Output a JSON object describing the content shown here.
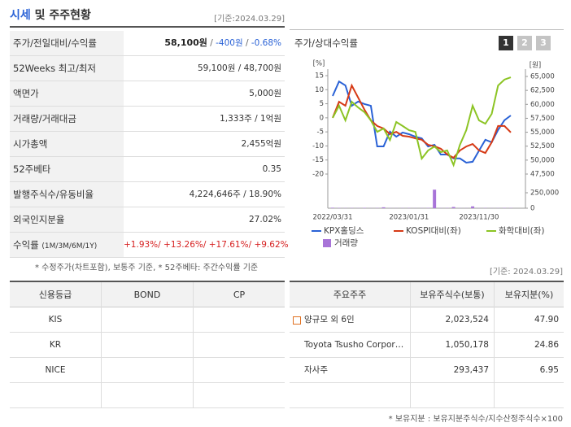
{
  "price_section": {
    "title_main": "시세",
    "title_rest": "및 주주현황",
    "date": "[기준:2024.03.29]",
    "rows": [
      {
        "label": "주가/전일대비/수익률",
        "value": [
          "58,100원",
          " / ",
          "-400원",
          " / ",
          "-0.68%"
        ]
      },
      {
        "label": "52Weeks 최고/최저",
        "value": "59,100원 / 48,700원"
      },
      {
        "label": "액면가",
        "value": "5,000원"
      },
      {
        "label": "거래량/거래대금",
        "value": "1,333주 / 1억원"
      },
      {
        "label": "시가총액",
        "value": "2,455억원"
      },
      {
        "label": "52주베타",
        "value": "0.35"
      },
      {
        "label": "발행주식수/유동비율",
        "value": "4,224,646주 / 18.90%"
      },
      {
        "label": "외국인지분율",
        "value": "27.02%"
      },
      {
        "label": "수익률",
        "sublabel": "(1M/3M/6M/1Y)",
        "value": "+1.93%/ +13.26%/ +17.61%/ +9.62%"
      }
    ],
    "footnote": "* 수정주가(차트포함), 보통주 기준, * 52주베타: 주간수익률 기준"
  },
  "chart_tabs": [
    "1",
    "2",
    "3"
  ],
  "chart_data": {
    "type": "line",
    "title": "주가/상대수익률",
    "y_unit": "[%]",
    "y2_unit": "[원]",
    "categories": [
      "2022/03/31",
      null,
      null,
      null,
      null,
      null,
      null,
      null,
      null,
      null,
      null,
      null,
      "2023/01/31",
      null,
      null,
      null,
      null,
      null,
      null,
      null,
      null,
      null,
      null,
      "2023/11/30",
      null,
      null,
      null,
      null,
      null
    ],
    "ylim": [
      -20,
      15
    ],
    "yticks": [
      15,
      10,
      5,
      0,
      -5,
      -10,
      -15,
      -20
    ],
    "y2lim": [
      47500,
      65000
    ],
    "y2ticks": [
      {
        "value": 65000,
        "label": "65,000"
      },
      {
        "value": 62500,
        "label": "62,500"
      },
      {
        "value": 60000,
        "label": "60,000"
      },
      {
        "value": 57500,
        "label": "57,500"
      },
      {
        "value": 55000,
        "label": "55,000"
      },
      {
        "value": 52500,
        "label": "52,500"
      },
      {
        "value": 50000,
        "label": "50,000"
      },
      {
        "value": 47500,
        "label": "47,500"
      }
    ],
    "y3lim": [
      0,
      250000
    ],
    "y3ticks": [
      {
        "value": 250000,
        "label": "250,000"
      },
      0
    ],
    "series": [
      {
        "name": "KPX홀딩스",
        "color": "#2a62d6",
        "axis": "y2",
        "values": [
          61500,
          64100,
          63400,
          59750,
          60500,
          60050,
          59750,
          52450,
          52450,
          55100,
          54200,
          54950,
          54650,
          54200,
          53900,
          52450,
          52750,
          51000,
          51000,
          50300,
          50300,
          49550,
          49700,
          51700,
          53650,
          53200,
          55400,
          57150,
          58000
        ]
      },
      {
        "name": "KOSPI대비(좌)",
        "color": "#d63a16",
        "axis": "y",
        "values": [
          0,
          5.7,
          4.3,
          11.5,
          7.2,
          2.9,
          -0.9,
          -2.9,
          -3.8,
          -5.8,
          -5.0,
          -6.4,
          -6.7,
          -7.3,
          -7.8,
          -9.6,
          -10.1,
          -11.0,
          -13.0,
          -14.2,
          -11.6,
          -10.2,
          -9.3,
          -11.6,
          -12.5,
          -8.7,
          -2.9,
          -2.9,
          -5.2
        ]
      },
      {
        "name": "화학대비(좌)",
        "color": "#8cc424",
        "axis": "y",
        "values": [
          0,
          4.3,
          -0.9,
          5.7,
          3.7,
          2.0,
          -0.9,
          -5.0,
          -3.8,
          -7.9,
          -1.5,
          -2.9,
          -4.4,
          -5.0,
          -14.5,
          -11.6,
          -10.2,
          -12.2,
          -11.6,
          -16.8,
          -9.6,
          -4.4,
          4.3,
          -0.9,
          -2.1,
          1.4,
          11.5,
          13.6,
          14.4
        ]
      },
      {
        "name": "거래량",
        "color": "#a874d8",
        "axis": "y3",
        "kind": "bar",
        "values": [
          8000,
          5000,
          3000,
          4000,
          3000,
          6000,
          2000,
          4000,
          15000,
          3000,
          2000,
          3000,
          4000,
          2000,
          3000,
          5000,
          300000,
          3000,
          4000,
          20000,
          3000,
          2000,
          30000,
          3000,
          4000,
          2000,
          3000,
          5000,
          4000
        ]
      }
    ]
  },
  "credit": {
    "headers": [
      "신용등급",
      "BOND",
      "CP"
    ],
    "rows": [
      [
        "KIS"
      ],
      [
        "KR"
      ],
      [
        "NICE"
      ]
    ]
  },
  "holders": {
    "date": "[기준: 2024.03.29]",
    "headers": [
      "주요주주",
      "보유주식수(보통)",
      "보유지분(%)"
    ],
    "rows": [
      [
        "양규모 외 6인",
        "2,023,524",
        "47.90"
      ],
      [
        "Toyota Tsusho Corpor…",
        "1,050,178",
        "24.86"
      ],
      [
        "자사주",
        "293,437",
        "6.95"
      ]
    ],
    "footnote": "* 보유지분 : 보유지분주식수/지수산정주식수×100"
  }
}
